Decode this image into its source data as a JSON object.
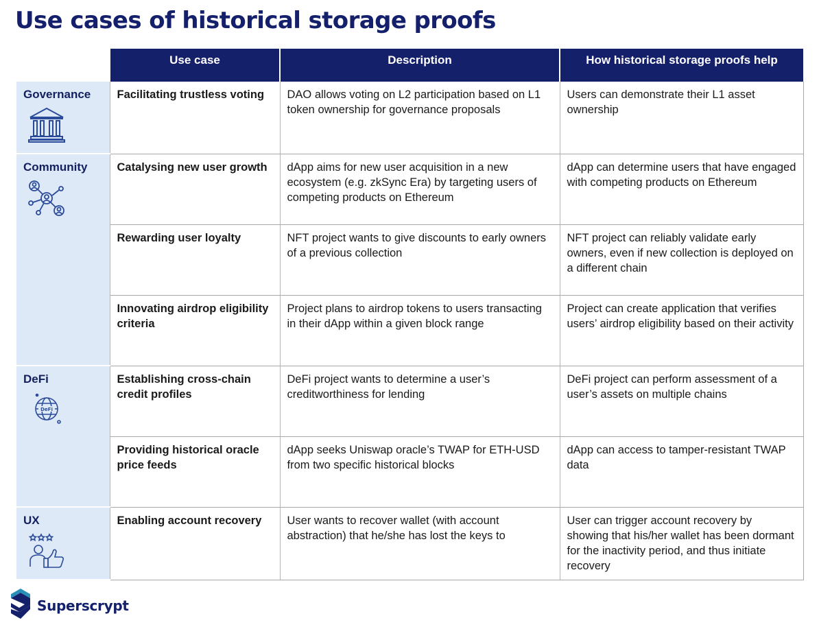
{
  "title": "Use cases of historical storage proofs",
  "columns": [
    "Use case",
    "Description",
    "How historical storage proofs help"
  ],
  "categories": [
    {
      "label": "Governance",
      "icon": "government-building-icon"
    },
    {
      "label": "Community",
      "icon": "users-network-icon"
    },
    {
      "label": "DeFi",
      "icon": "defi-globe-icon"
    },
    {
      "label": "UX",
      "icon": "thumbs-up-rating-icon"
    }
  ],
  "rows": [
    {
      "use_case": "Facilitating trustless voting",
      "description": "DAO allows voting on L2 participation based on L1 token ownership for governance proposals",
      "help": "Users can demonstrate their L1 asset ownership"
    },
    {
      "use_case": "Catalysing new user growth",
      "description": "dApp aims for new user acquisition in a new ecosystem (e.g. zkSync Era) by targeting users of competing products on Ethereum",
      "help": "dApp can determine users that have engaged with competing products on Ethereum"
    },
    {
      "use_case": "Rewarding user loyalty",
      "description": "NFT project wants to give discounts to early owners of a previous collection",
      "help": "NFT project can reliably validate early owners, even if new collection is deployed on a different chain"
    },
    {
      "use_case": "Innovating airdrop eligibility criteria",
      "description": "Project plans to airdrop tokens to users transacting in their dApp within a given block range",
      "help": "Project can create application that verifies users’ airdrop eligibility based on their activity"
    },
    {
      "use_case": "Establishing cross-chain credit profiles",
      "description": "DeFi project wants to determine a user’s creditworthiness for lending",
      "help": "DeFi project can perform assessment of a user’s assets on multiple chains"
    },
    {
      "use_case": "Providing historical oracle price feeds",
      "description": "dApp seeks Uniswap oracle’s TWAP for ETH-USD from two specific historical blocks",
      "help": "dApp can access to tamper-resistant TWAP data"
    },
    {
      "use_case": "Enabling account recovery",
      "description": "User wants to recover wallet (with account abstraction) that he/she has lost the keys to",
      "help": "User can trigger account recovery by showing that his/her wallet has been dormant for the inactivity period, and thus initiate recovery"
    }
  ],
  "logo": {
    "name": "Superscrypt",
    "colors": {
      "navy": "#15206a",
      "accent": "#2a8fb8"
    }
  },
  "colors": {
    "header_bg": "#15206a",
    "category_bg": "#dde9f7",
    "title": "#14206b"
  }
}
